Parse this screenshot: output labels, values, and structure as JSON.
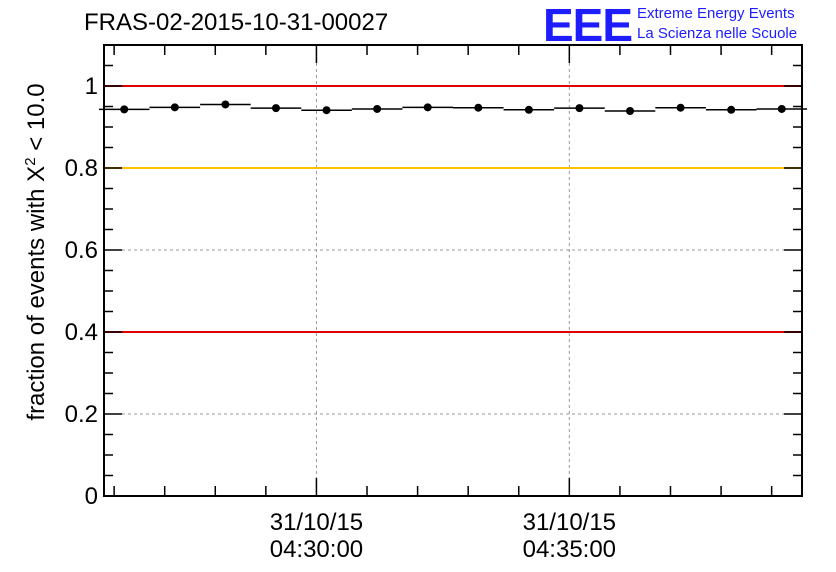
{
  "header": {
    "run_title": "FRAS-02-2015-10-31-00027",
    "logo_text": "EEE",
    "logo_line1": "Extreme Energy Events",
    "logo_line2": "La Scienza nelle Scuole"
  },
  "axis": {
    "ylabel_prefix": "fraction of events with ",
    "ylabel_symbol": "X",
    "ylabel_power": "2",
    "ylabel_suffix": " < 10.0"
  },
  "colors": {
    "red": "#e00000",
    "yellow": "#ffc000",
    "logo_blue": "#1d1dff"
  },
  "chart_data": {
    "type": "scatter",
    "title": "FRAS-02-2015-10-31-00027",
    "ylabel": "fraction of events with X² < 10.0",
    "ylim": [
      0,
      1.1
    ],
    "yticks": [
      0,
      0.2,
      0.4,
      0.6,
      0.8,
      1
    ],
    "ytick_labels": [
      "0",
      "0.2",
      "0.4",
      "0.6",
      "0.8",
      "1"
    ],
    "xlim_minutes": [
      -4.2,
      9.6
    ],
    "xticks": [
      {
        "minute": 0,
        "date": "31/10/15",
        "time": "04:30:00"
      },
      {
        "minute": 5,
        "date": "31/10/15",
        "time": "04:35:00"
      }
    ],
    "grid": true,
    "bin_width_minutes": 1.0,
    "series": [
      {
        "name": "fraction",
        "x_minutes": [
          -3.8,
          -2.8,
          -1.8,
          -0.8,
          0.2,
          1.2,
          2.2,
          3.2,
          4.2,
          5.2,
          6.2,
          7.2,
          8.2,
          9.2
        ],
        "values": [
          0.943,
          0.948,
          0.955,
          0.946,
          0.941,
          0.944,
          0.948,
          0.947,
          0.942,
          0.946,
          0.939,
          0.947,
          0.942,
          0.944
        ]
      }
    ],
    "reference_lines": [
      {
        "y": 1.0,
        "color": "#e00000"
      },
      {
        "y": 0.8,
        "color": "#ffc000"
      },
      {
        "y": 0.4,
        "color": "#e00000"
      }
    ]
  }
}
